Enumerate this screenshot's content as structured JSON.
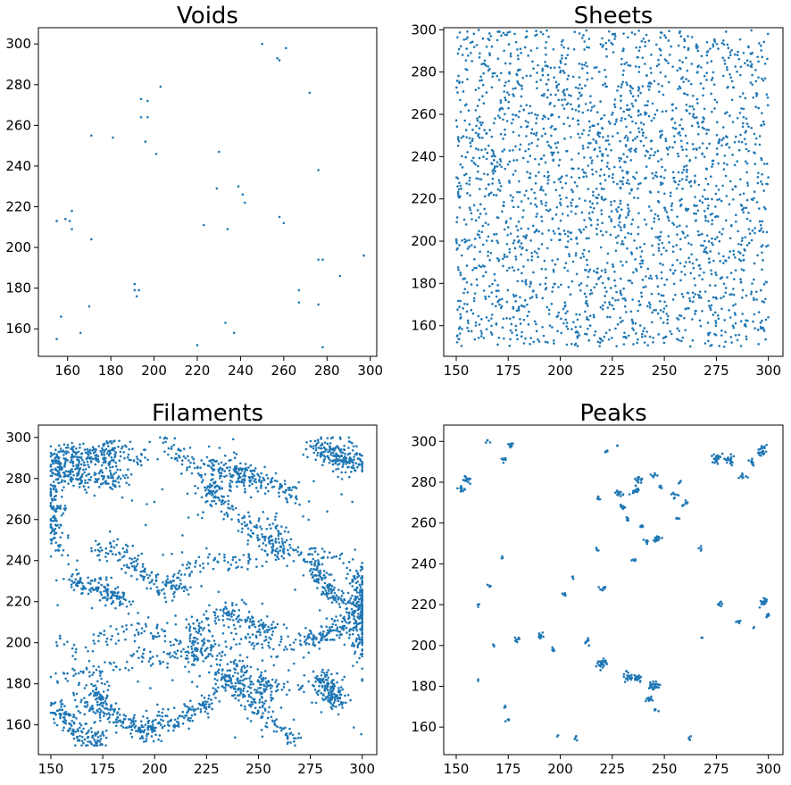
{
  "figure": {
    "point_color": "#1f77b4"
  },
  "chart_data": [
    {
      "type": "scatter",
      "title": "Voids",
      "xlim": [
        146.5,
        303
      ],
      "ylim": [
        146.5,
        308
      ],
      "xticks": [
        160,
        180,
        200,
        220,
        240,
        260,
        280,
        300
      ],
      "yticks": [
        160,
        180,
        200,
        220,
        240,
        260,
        280,
        300
      ],
      "grid": false,
      "points": [
        [
          250,
          300
        ],
        [
          261,
          298
        ],
        [
          257,
          293
        ],
        [
          258,
          292
        ],
        [
          203,
          279
        ],
        [
          194,
          273
        ],
        [
          197,
          272
        ],
        [
          272,
          276
        ],
        [
          194,
          264
        ],
        [
          197,
          264
        ],
        [
          171,
          255
        ],
        [
          181,
          254
        ],
        [
          196,
          252
        ],
        [
          201,
          246
        ],
        [
          230,
          247
        ],
        [
          276,
          238
        ],
        [
          239,
          230
        ],
        [
          229,
          229
        ],
        [
          241,
          226
        ],
        [
          242,
          222
        ],
        [
          162,
          218
        ],
        [
          155,
          213
        ],
        [
          159,
          214
        ],
        [
          161,
          213
        ],
        [
          258,
          215
        ],
        [
          260,
          212
        ],
        [
          223,
          211
        ],
        [
          234,
          209
        ],
        [
          162,
          209
        ],
        [
          171,
          204
        ],
        [
          278,
          194
        ],
        [
          276,
          194
        ],
        [
          286,
          186
        ],
        [
          297,
          196
        ],
        [
          191,
          182
        ],
        [
          193,
          179
        ],
        [
          191,
          179
        ],
        [
          192,
          176
        ],
        [
          267,
          179
        ],
        [
          267,
          173
        ],
        [
          276,
          172
        ],
        [
          157,
          166
        ],
        [
          233,
          163
        ],
        [
          170,
          171
        ],
        [
          166,
          158
        ],
        [
          155,
          155
        ],
        [
          237,
          158
        ],
        [
          220,
          152
        ],
        [
          278,
          151
        ]
      ]
    },
    {
      "type": "scatter",
      "title": "Sheets",
      "xlim": [
        144,
        307
      ],
      "ylim": [
        145.5,
        301
      ],
      "xticks": [
        150,
        175,
        200,
        225,
        250,
        275,
        300
      ],
      "yticks": [
        160,
        180,
        200,
        220,
        240,
        260,
        280,
        300
      ],
      "grid": false,
      "density": "uniform",
      "point_count": 2400,
      "x_range": [
        150,
        300
      ],
      "y_range": [
        150,
        300
      ],
      "seed": 7
    },
    {
      "type": "scatter",
      "title": "Filaments",
      "xlim": [
        144,
        307
      ],
      "ylim": [
        145.5,
        306
      ],
      "xticks": [
        150,
        175,
        200,
        225,
        250,
        275,
        300
      ],
      "yticks": [
        160,
        180,
        200,
        220,
        240,
        260,
        280,
        300
      ],
      "grid": false,
      "point_count": 3600,
      "seed": 11,
      "structures": [
        [
          [
            152,
            293
          ],
          [
            165,
            290
          ],
          [
            180,
            294
          ],
          [
            195,
            290
          ]
        ],
        [
          [
            152,
            285
          ],
          [
            160,
            280
          ],
          [
            172,
            278
          ],
          [
            185,
            280
          ]
        ],
        [
          [
            152,
            292
          ],
          [
            151,
            275
          ],
          [
            152,
            262
          ],
          [
            153,
            245
          ]
        ],
        [
          [
            205,
            298
          ],
          [
            215,
            290
          ],
          [
            225,
            280
          ],
          [
            232,
            270
          ],
          [
            240,
            262
          ],
          [
            250,
            252
          ],
          [
            262,
            246
          ]
        ],
        [
          [
            225,
            288
          ],
          [
            240,
            283
          ],
          [
            255,
            278
          ],
          [
            268,
            272
          ]
        ],
        [
          [
            277,
            297
          ],
          [
            290,
            290
          ],
          [
            300,
            287
          ]
        ],
        [
          [
            170,
            244
          ],
          [
            180,
            245
          ],
          [
            192,
            236
          ],
          [
            205,
            228
          ],
          [
            215,
            224
          ]
        ],
        [
          [
            160,
            230
          ],
          [
            172,
            228
          ],
          [
            185,
            220
          ]
        ],
        [
          [
            200,
            222
          ],
          [
            222,
            240
          ],
          [
            245,
            240
          ],
          [
            262,
            245
          ],
          [
            278,
            243
          ],
          [
            290,
            240
          ],
          [
            300,
            232
          ]
        ],
        [
          [
            300,
            235
          ],
          [
            298,
            222
          ],
          [
            300,
            208
          ],
          [
            300,
            195
          ]
        ],
        [
          [
            270,
            200
          ],
          [
            285,
            205
          ],
          [
            300,
            215
          ]
        ],
        [
          [
            300,
            220
          ],
          [
            285,
            224
          ],
          [
            275,
            240
          ]
        ],
        [
          [
            150,
            200
          ],
          [
            165,
            196
          ],
          [
            180,
            204
          ],
          [
            195,
            206
          ],
          [
            210,
            200
          ],
          [
            225,
            192
          ],
          [
            240,
            186
          ],
          [
            255,
            180
          ],
          [
            268,
            178
          ],
          [
            280,
            180
          ],
          [
            300,
            185
          ]
        ],
        [
          [
            150,
            183
          ],
          [
            162,
            184
          ],
          [
            175,
            186
          ],
          [
            190,
            192
          ],
          [
            205,
            192
          ],
          [
            220,
            195
          ],
          [
            235,
            200
          ],
          [
            250,
            200
          ],
          [
            265,
            197
          ]
        ],
        [
          [
            172,
            178
          ],
          [
            178,
            165
          ],
          [
            188,
            160
          ],
          [
            200,
            155
          ]
        ],
        [
          [
            232,
            185
          ],
          [
            243,
            175
          ],
          [
            250,
            167
          ],
          [
            258,
            160
          ],
          [
            270,
            152
          ]
        ],
        [
          [
            152,
            168
          ],
          [
            160,
            160
          ],
          [
            165,
            155
          ],
          [
            175,
            152
          ]
        ],
        [
          [
            218,
            205
          ],
          [
            230,
            215
          ],
          [
            245,
            210
          ],
          [
            260,
            204
          ]
        ],
        [
          [
            195,
            160
          ],
          [
            210,
            162
          ],
          [
            222,
            168
          ],
          [
            232,
            176
          ]
        ],
        [
          [
            280,
            184
          ],
          [
            284,
            176
          ],
          [
            290,
            170
          ]
        ]
      ],
      "clusters": [
        [
          228,
          272
        ],
        [
          240,
          282
        ],
        [
          258,
          252
        ],
        [
          222,
          198
        ],
        [
          238,
          186
        ],
        [
          252,
          180
        ],
        [
          300,
          218
        ],
        [
          290,
          290
        ],
        [
          160,
          287
        ],
        [
          176,
          290
        ],
        [
          170,
          170
        ]
      ]
    },
    {
      "type": "scatter",
      "title": "Peaks",
      "xlim": [
        144,
        307
      ],
      "ylim": [
        146.5,
        308
      ],
      "xticks": [
        150,
        175,
        200,
        225,
        250,
        275,
        300
      ],
      "yticks": [
        160,
        180,
        200,
        220,
        240,
        260,
        280,
        300
      ],
      "grid": false,
      "seed": 23,
      "clusters": [
        [
          152,
          277,
          1.0,
          14
        ],
        [
          155,
          281,
          1.0,
          16
        ],
        [
          165,
          300,
          0.6,
          4
        ],
        [
          176,
          298,
          0.8,
          10
        ],
        [
          173,
          291,
          0.8,
          8
        ],
        [
          172,
          243,
          0.5,
          3
        ],
        [
          166,
          229,
          0.5,
          4
        ],
        [
          161,
          220,
          0.5,
          3
        ],
        [
          161,
          183,
          0.4,
          2
        ],
        [
          168,
          200,
          0.4,
          3
        ],
        [
          179,
          203,
          0.7,
          8
        ],
        [
          175,
          164,
          0.5,
          4
        ],
        [
          173,
          170,
          0.5,
          3
        ],
        [
          191,
          205,
          0.9,
          12
        ],
        [
          197,
          198,
          0.6,
          6
        ],
        [
          202,
          225,
          0.6,
          6
        ],
        [
          206,
          233,
          0.5,
          4
        ],
        [
          199,
          155,
          0.4,
          2
        ],
        [
          207,
          154,
          0.5,
          4
        ],
        [
          213,
          202,
          0.8,
          8
        ],
        [
          218,
          247,
          0.5,
          4
        ],
        [
          220,
          228,
          0.7,
          8
        ],
        [
          220,
          191,
          1.2,
          26
        ],
        [
          218,
          272,
          0.6,
          6
        ],
        [
          222,
          295,
          0.5,
          4
        ],
        [
          227,
          298,
          0.4,
          2
        ],
        [
          228,
          274,
          0.9,
          16
        ],
        [
          230,
          268,
          0.8,
          12
        ],
        [
          232,
          262,
          0.6,
          8
        ],
        [
          233,
          185,
          1.2,
          24
        ],
        [
          237,
          184,
          0.9,
          14
        ],
        [
          236,
          276,
          1.0,
          18
        ],
        [
          238,
          281,
          0.9,
          14
        ],
        [
          236,
          242,
          0.6,
          6
        ],
        [
          239,
          258,
          0.6,
          8
        ],
        [
          241,
          251,
          0.7,
          8
        ],
        [
          245,
          283,
          0.7,
          8
        ],
        [
          245,
          180,
          1.1,
          30
        ],
        [
          243,
          174,
          0.8,
          10
        ],
        [
          246,
          168,
          0.6,
          6
        ],
        [
          246,
          252,
          1.0,
          18
        ],
        [
          248,
          278,
          0.6,
          6
        ],
        [
          255,
          274,
          0.7,
          8
        ],
        [
          257,
          280,
          0.5,
          4
        ],
        [
          256,
          262,
          0.5,
          4
        ],
        [
          260,
          270,
          0.7,
          8
        ],
        [
          262,
          155,
          0.5,
          4
        ],
        [
          267,
          247,
          0.5,
          4
        ],
        [
          268,
          204,
          0.4,
          2
        ],
        [
          275,
          292,
          1.2,
          22
        ],
        [
          281,
          291,
          1.2,
          20
        ],
        [
          288,
          283,
          0.8,
          10
        ],
        [
          285,
          212,
          0.6,
          6
        ],
        [
          292,
          290,
          0.8,
          8
        ],
        [
          297,
          295,
          1.2,
          24
        ],
        [
          298,
          221,
          1.0,
          18
        ],
        [
          300,
          215,
          0.6,
          6
        ],
        [
          293,
          209,
          0.4,
          2
        ],
        [
          277,
          220,
          0.6,
          6
        ]
      ]
    }
  ]
}
